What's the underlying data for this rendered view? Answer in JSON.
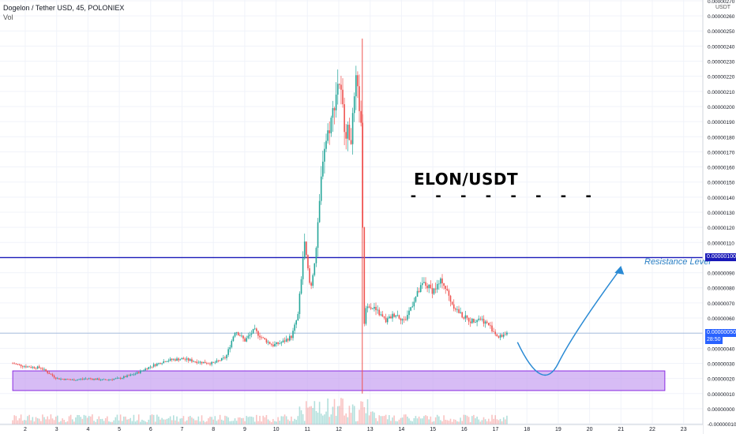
{
  "header": {
    "symbol_line": "Dogelon / Tether USD, 45, POLONIEX",
    "volume_label": "Vol"
  },
  "axis_unit": "USDT",
  "annotations": {
    "pair_title": "ELON/USDT",
    "pair_underline": "- - - - - - - -",
    "resistance_label": "Resistance Level"
  },
  "price_tags": {
    "resistance": "0.00000100",
    "last_price": "0.00000050",
    "countdown": "28:50"
  },
  "colors": {
    "up": "#26a69a",
    "down": "#ef5350",
    "resistance_line": "#1a1ab8",
    "support_zone_fill": "#c9a6f2",
    "support_zone_border": "#8a2be2",
    "projection_arrow": "#2a8ad4",
    "last_price_tag": "#2962ff"
  },
  "chart_data": {
    "type": "candlestick",
    "x_axis": {
      "ticks": [
        "2",
        "3",
        "4",
        "5",
        "6",
        "7",
        "8",
        "9",
        "10",
        "11",
        "12",
        "13",
        "14",
        "15",
        "16",
        "17",
        "18",
        "19",
        "20",
        "21",
        "22",
        "23"
      ]
    },
    "y_axis": {
      "scale": "linear",
      "ylim": [
        -1.05e-08,
        2.705e-07
      ],
      "tick_labels": [
        "0.00000270",
        "0.00000260",
        "0.00000250",
        "0.00000240",
        "0.00000230",
        "0.00000220",
        "0.00000210",
        "0.00000200",
        "0.00000190",
        "0.00000180",
        "0.00000170",
        "0.00000160",
        "0.00000150",
        "0.00000140",
        "0.00000130",
        "0.00000120",
        "0.00000110",
        "0.00000100",
        "0.00000090",
        "0.00000080",
        "0.00000070",
        "0.00000060",
        "0.00000050",
        "0.00000040",
        "0.00000030",
        "0.00000020",
        "0.00000010",
        "0.00000000",
        "-0.00000010"
      ],
      "label_values": [
        2.7e-07,
        2.6e-07,
        2.5e-07,
        2.4e-07,
        2.3e-07,
        2.2e-07,
        2.1e-07,
        2e-07,
        1.9e-07,
        1.8e-07,
        1.7e-07,
        1.6e-07,
        1.5e-07,
        1.4e-07,
        1.3e-07,
        1.2e-07,
        1.1e-07,
        1e-07,
        9e-08,
        8e-08,
        7e-08,
        6e-08,
        5e-08,
        4e-08,
        3e-08,
        2e-08,
        1e-08,
        0,
        -1e-08
      ]
    },
    "price_path": [
      [
        1.6,
        3e-08
      ],
      [
        2.0,
        2.8e-08
      ],
      [
        2.5,
        2.7e-08
      ],
      [
        3.0,
        2e-08
      ],
      [
        3.5,
        1.9e-08
      ],
      [
        4.0,
        2e-08
      ],
      [
        4.5,
        1.9e-08
      ],
      [
        5.0,
        2e-08
      ],
      [
        5.5,
        2.3e-08
      ],
      [
        6.0,
        2.8e-08
      ],
      [
        6.5,
        3.2e-08
      ],
      [
        7.0,
        3.3e-08
      ],
      [
        7.5,
        3.1e-08
      ],
      [
        8.0,
        3e-08
      ],
      [
        8.4,
        3.4e-08
      ],
      [
        8.7,
        5.2e-08
      ],
      [
        9.0,
        4.5e-08
      ],
      [
        9.3,
        5.2e-08
      ],
      [
        9.6,
        4.6e-08
      ],
      [
        9.9,
        4.2e-08
      ],
      [
        10.2,
        4.4e-08
      ],
      [
        10.5,
        4.8e-08
      ],
      [
        10.7,
        6.2e-08
      ],
      [
        10.9,
        1.1e-07
      ],
      [
        11.1,
        7.8e-08
      ],
      [
        11.3,
        1.1e-07
      ],
      [
        11.5,
        1.7e-07
      ],
      [
        11.8,
        1.95e-07
      ],
      [
        12.0,
        2.2e-07
      ],
      [
        12.2,
        1.85e-07
      ],
      [
        12.4,
        1.8e-07
      ],
      [
        12.55,
        2.15e-07
      ],
      [
        12.7,
        1.95e-07
      ],
      [
        12.75,
        1.35e-07
      ],
      [
        12.8,
        5.5e-08
      ],
      [
        12.9,
        7e-08
      ],
      [
        13.2,
        6.5e-08
      ],
      [
        13.5,
        5.8e-08
      ],
      [
        13.8,
        6.3e-08
      ],
      [
        14.1,
        5.8e-08
      ],
      [
        14.4,
        7.2e-08
      ],
      [
        14.7,
        8.3e-08
      ],
      [
        15.0,
        7.8e-08
      ],
      [
        15.3,
        8.5e-08
      ],
      [
        15.6,
        7e-08
      ],
      [
        15.9,
        6.2e-08
      ],
      [
        16.2,
        5.8e-08
      ],
      [
        16.5,
        6e-08
      ],
      [
        16.8,
        5.5e-08
      ],
      [
        17.1,
        4.7e-08
      ],
      [
        17.4,
        5.1e-08
      ]
    ],
    "resistance_level": 1e-07,
    "last_price": 5e-08,
    "support_zone": {
      "x_range": [
        1.6,
        22.4
      ],
      "y_range": [
        1.2e-08,
        2.5e-08
      ]
    },
    "projection_path": [
      [
        17.7,
        4.4e-08
      ],
      [
        19.0,
        3e-08
      ],
      [
        21.0,
        9.3e-08
      ]
    ]
  }
}
